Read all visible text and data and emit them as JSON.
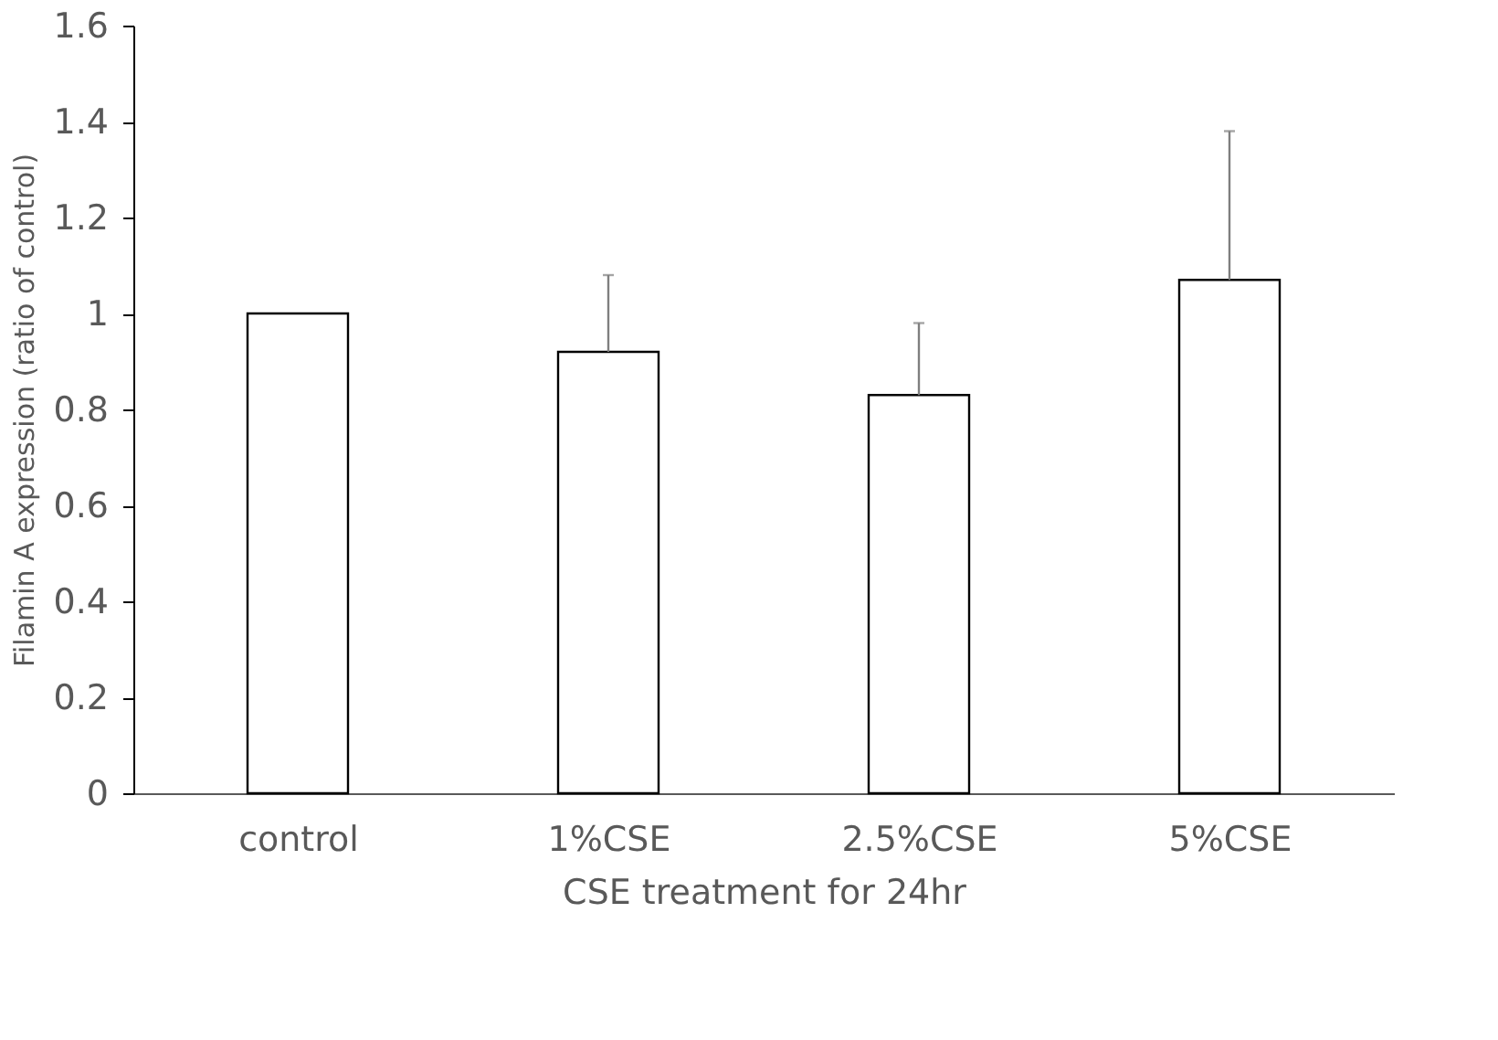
{
  "chart_data": {
    "type": "bar",
    "xlabel": "CSE treatment for 24hr",
    "ylabel": "Filamin A expression (ratio of control)",
    "categories": [
      "control",
      "1%CSE",
      "2.5%CSE",
      "5%CSE"
    ],
    "values": [
      1.0,
      0.92,
      0.83,
      1.07
    ],
    "errors": [
      null,
      [
        0.92,
        1.08
      ],
      [
        0.83,
        0.98
      ],
      [
        1.07,
        1.38
      ]
    ],
    "color": "#ffffff",
    "ylim": [
      0,
      1.6
    ],
    "yticks": [
      0,
      0.2,
      0.4,
      0.6,
      0.8,
      1,
      1.2,
      1.4,
      1.6
    ],
    "grid": false
  }
}
